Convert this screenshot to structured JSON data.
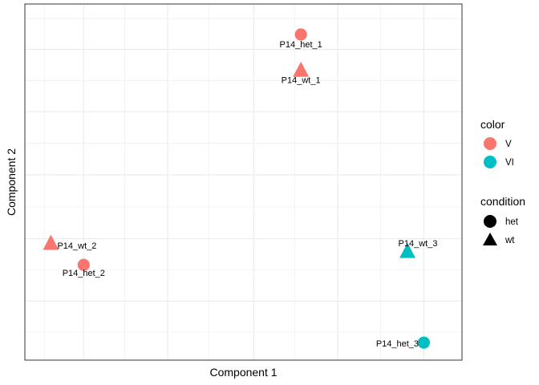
{
  "chart_data": {
    "type": "scatter",
    "xlabel": "Component 1",
    "ylabel": "Component 2",
    "xlim": [
      0,
      100
    ],
    "ylim": [
      0,
      100
    ],
    "grid": true,
    "legend_position": "right",
    "points": [
      {
        "label": "P14_het_1",
        "x": 65.0,
        "y": 95.8,
        "color_group": "V",
        "condition": "het"
      },
      {
        "label": "P14_wt_1",
        "x": 65.0,
        "y": 84.8,
        "color_group": "V",
        "condition": "wt"
      },
      {
        "label": "P14_wt_2",
        "x": 4.0,
        "y": 31.4,
        "color_group": "V",
        "condition": "wt"
      },
      {
        "label": "P14_het_2",
        "x": 12.0,
        "y": 24.7,
        "color_group": "V",
        "condition": "het"
      },
      {
        "label": "P14_wt_3",
        "x": 91.0,
        "y": 28.9,
        "color_group": "VI",
        "condition": "wt"
      },
      {
        "label": "P14_het_3",
        "x": 95.0,
        "y": 0.7,
        "color_group": "VI",
        "condition": "het"
      }
    ],
    "legends": {
      "color": {
        "title": "color",
        "entries": [
          {
            "label": "V",
            "color": "#F8766D"
          },
          {
            "label": "VI",
            "color": "#00BFC4"
          }
        ]
      },
      "condition": {
        "title": "condition",
        "entries": [
          {
            "label": "het",
            "shape": "circle"
          },
          {
            "label": "wt",
            "shape": "triangle"
          }
        ]
      }
    }
  }
}
